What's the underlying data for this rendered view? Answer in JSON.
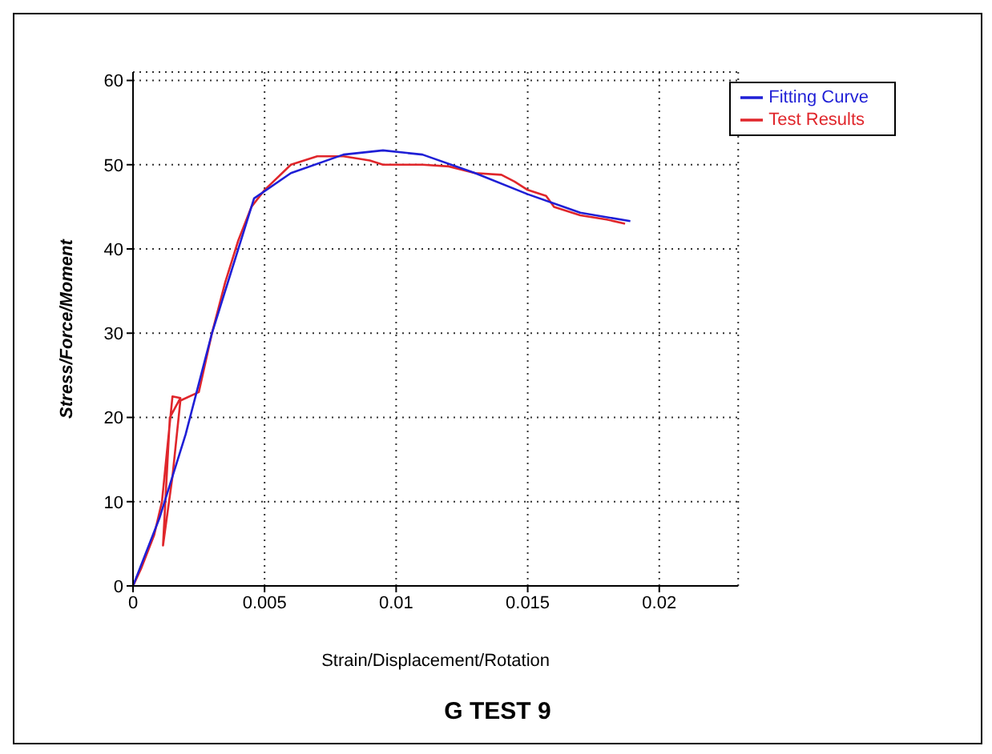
{
  "chart_data": {
    "type": "line",
    "title": "G TEST 9",
    "xlabel": "Strain/Displacement/Rotation",
    "ylabel": "Stress/Force/Moment",
    "xlim": [
      0,
      0.023
    ],
    "xticks": [
      0,
      0.005,
      0.01,
      0.015,
      0.02
    ],
    "ylim": [
      0,
      61
    ],
    "yticks": [
      0,
      10,
      20,
      30,
      40,
      50,
      60
    ],
    "grid": true,
    "legend": "top right",
    "marker": "none",
    "line_style": "solid",
    "series": [
      {
        "name": "Test Results",
        "color": "#e0262b",
        "x": [
          0,
          0.0003,
          0.0008,
          0.0011,
          0.0015,
          0.0018,
          0.0014,
          0.00114,
          0.0015,
          0.0018,
          0.0025,
          0.003,
          0.0035,
          0.004,
          0.0045,
          0.005,
          0.006,
          0.007,
          0.008,
          0.009,
          0.0095,
          0.011,
          0.012,
          0.013,
          0.014,
          0.0145,
          0.015,
          0.0157,
          0.016,
          0.017,
          0.018,
          0.0187
        ],
        "values": [
          0,
          2,
          6,
          10,
          22.5,
          22.3,
          20,
          4.8,
          13,
          22,
          23,
          30,
          36,
          41,
          45,
          47,
          50,
          51,
          51,
          50.5,
          50,
          50,
          49.8,
          49,
          48.8,
          48,
          47,
          46.3,
          45,
          44,
          43.5,
          43
        ]
      },
      {
        "name": "Fitting Curve",
        "color": "#1f1fd6",
        "x": [
          0,
          0.001,
          0.002,
          0.003,
          0.004,
          0.0046,
          0.006,
          0.008,
          0.0095,
          0.011,
          0.013,
          0.015,
          0.017,
          0.0189
        ],
        "values": [
          0,
          8,
          18,
          30,
          40,
          46,
          49,
          51.2,
          51.7,
          51.2,
          49,
          46.5,
          44.3,
          43.3
        ]
      }
    ]
  }
}
